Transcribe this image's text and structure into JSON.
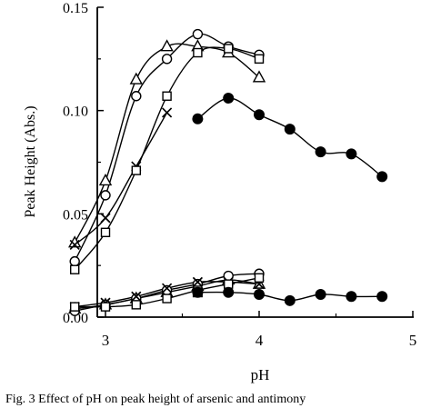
{
  "caption": "Fig. 3 Effect of pH on peak height of arsenic and antimony",
  "chart_data": {
    "type": "line",
    "xlabel": "pH",
    "ylabel": "Peak Height (Abs.)",
    "xlim": [
      2.5,
      5
    ],
    "ylim": [
      0,
      0.15
    ],
    "xticks": [
      "3",
      "4",
      "5"
    ],
    "yticks": [
      "0.00",
      "0.05",
      "0.10",
      "0.15"
    ],
    "grid": false,
    "legend": "none",
    "series": [
      {
        "marker": "triangle-open",
        "x": [
          2.8,
          3.0,
          3.2,
          3.4,
          3.6,
          3.8,
          4.0
        ],
        "y": [
          0.036,
          0.066,
          0.115,
          0.131,
          0.131,
          0.128,
          0.116
        ]
      },
      {
        "marker": "circle-open",
        "x": [
          2.8,
          3.0,
          3.2,
          3.4,
          3.6,
          3.8,
          4.0
        ],
        "y": [
          0.027,
          0.059,
          0.107,
          0.125,
          0.137,
          0.131,
          0.127
        ]
      },
      {
        "marker": "cross",
        "x": [
          2.8,
          3.0,
          3.2,
          3.4
        ],
        "y": [
          0.035,
          0.048,
          0.073,
          0.099
        ]
      },
      {
        "marker": "square-open",
        "x": [
          2.8,
          3.0,
          3.2,
          3.4,
          3.6,
          3.8,
          4.0
        ],
        "y": [
          0.023,
          0.041,
          0.071,
          0.107,
          0.128,
          0.13,
          0.125
        ]
      },
      {
        "marker": "circle-filled",
        "x": [
          3.6,
          3.8,
          4.0,
          4.2,
          4.4,
          4.6,
          4.8
        ],
        "y": [
          0.096,
          0.106,
          0.098,
          0.091,
          0.08,
          0.079,
          0.068
        ]
      },
      {
        "marker": "triangle-open",
        "x": [
          2.8,
          3.0,
          3.2,
          3.4,
          3.6,
          3.8,
          4.0
        ],
        "y": [
          0.004,
          0.006,
          0.009,
          0.012,
          0.015,
          0.018,
          0.016
        ]
      },
      {
        "marker": "circle-open",
        "x": [
          2.8,
          3.0,
          3.2,
          3.4,
          3.6,
          3.8,
          4.0
        ],
        "y": [
          0.003,
          0.006,
          0.009,
          0.013,
          0.016,
          0.02,
          0.021
        ]
      },
      {
        "marker": "cross",
        "x": [
          2.8,
          3.0,
          3.2,
          3.4,
          3.6,
          3.8,
          4.0
        ],
        "y": [
          0.005,
          0.007,
          0.01,
          0.014,
          0.017,
          0.017,
          0.016
        ]
      },
      {
        "marker": "square-open",
        "x": [
          2.8,
          3.0,
          3.2,
          3.4,
          3.6,
          3.8,
          4.0
        ],
        "y": [
          0.005,
          0.005,
          0.006,
          0.009,
          0.013,
          0.016,
          0.019
        ]
      },
      {
        "marker": "circle-filled",
        "x": [
          3.6,
          3.8,
          4.0,
          4.2,
          4.4,
          4.6,
          4.8
        ],
        "y": [
          0.012,
          0.012,
          0.011,
          0.008,
          0.011,
          0.01,
          0.01
        ]
      },
      {
        "marker": "square-filled",
        "x": [
          3.6
        ],
        "y": [
          0.012
        ]
      }
    ]
  }
}
